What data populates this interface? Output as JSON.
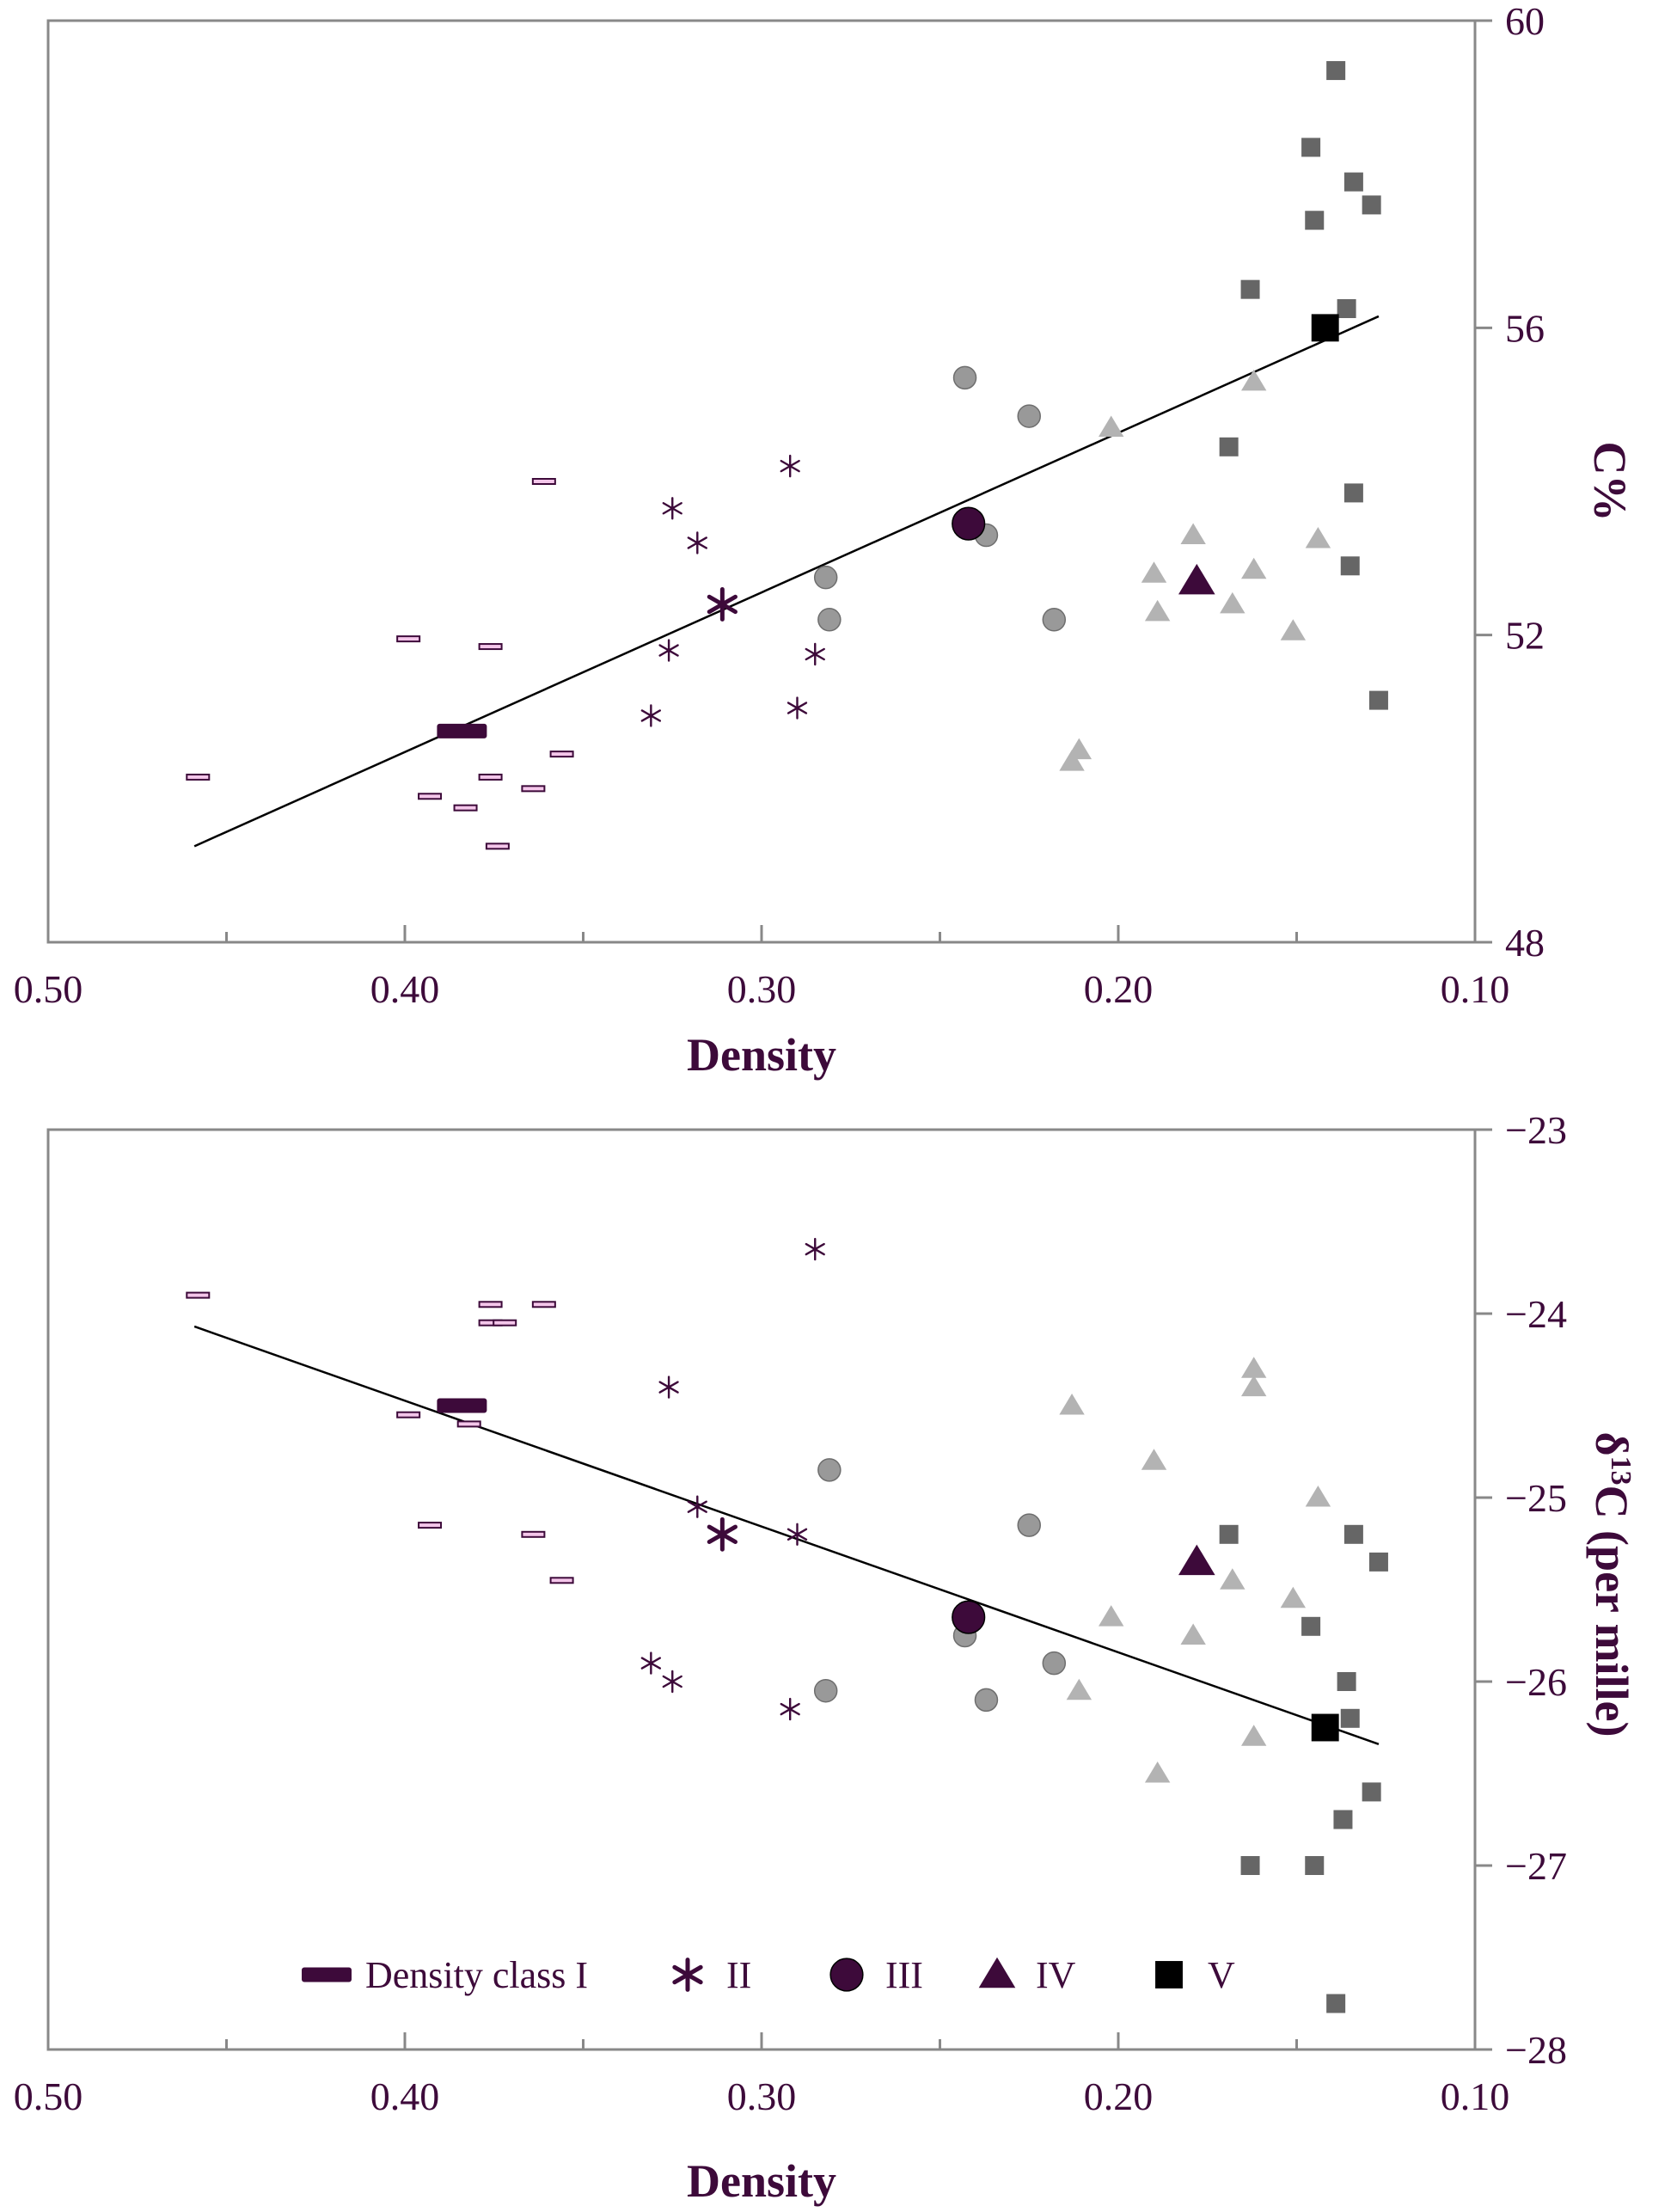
{
  "colors": {
    "class_I": "#3d0a3a",
    "class_II": "#3d0a3a",
    "class_III": "#999999",
    "class_IV": "#b3b3b3",
    "class_V": "#666666",
    "mean_I": "#3d0a3a",
    "mean_II": "#3d0a3a",
    "mean_III": "#3d0a3a",
    "mean_IV": "#3d0a3a",
    "mean_V": "#000000",
    "class_I_fill": "#f4c6ea",
    "axis": "#888888",
    "text": "#3d0a3a"
  },
  "legend": {
    "items": [
      {
        "label": "Density class I",
        "marker": "dash"
      },
      {
        "label": "II",
        "marker": "asterisk"
      },
      {
        "label": "III",
        "marker": "circle"
      },
      {
        "label": "IV",
        "marker": "triangle"
      },
      {
        "label": "V",
        "marker": "square"
      }
    ]
  },
  "chart_data": [
    {
      "type": "scatter",
      "xlabel": "Density",
      "ylabel": "C%",
      "xlim": [
        0.5,
        0.1
      ],
      "ylim": [
        48,
        60
      ],
      "x_ticks": [
        "0.50",
        "0.40",
        "0.30",
        "0.20",
        "0.10"
      ],
      "y_ticks": [
        "48",
        "52",
        "56",
        "60"
      ],
      "x_reversed": true,
      "y_axis_side": "right",
      "grid": false,
      "trendline": {
        "x": [
          0.459,
          0.127
        ],
        "y": [
          49.25,
          56.15
        ]
      },
      "series": [
        {
          "name": "Density class I",
          "marker": "dash",
          "points": [
            {
              "x": 0.361,
              "y": 54.0
            },
            {
              "x": 0.399,
              "y": 51.95
            },
            {
              "x": 0.376,
              "y": 51.85
            },
            {
              "x": 0.458,
              "y": 50.15
            },
            {
              "x": 0.393,
              "y": 49.9
            },
            {
              "x": 0.383,
              "y": 49.75
            },
            {
              "x": 0.376,
              "y": 50.15
            },
            {
              "x": 0.364,
              "y": 50.0
            },
            {
              "x": 0.356,
              "y": 50.45
            },
            {
              "x": 0.374,
              "y": 49.25
            }
          ]
        },
        {
          "name": "II",
          "marker": "asterisk",
          "points": [
            {
              "x": 0.292,
              "y": 54.2
            },
            {
              "x": 0.325,
              "y": 53.65
            },
            {
              "x": 0.318,
              "y": 53.2
            },
            {
              "x": 0.326,
              "y": 51.8
            },
            {
              "x": 0.285,
              "y": 51.75
            },
            {
              "x": 0.331,
              "y": 50.95
            },
            {
              "x": 0.29,
              "y": 51.05
            }
          ]
        },
        {
          "name": "III",
          "marker": "circle",
          "points": [
            {
              "x": 0.243,
              "y": 55.35
            },
            {
              "x": 0.225,
              "y": 54.85
            },
            {
              "x": 0.237,
              "y": 53.3
            },
            {
              "x": 0.282,
              "y": 52.75
            },
            {
              "x": 0.281,
              "y": 52.2
            },
            {
              "x": 0.218,
              "y": 52.2
            }
          ]
        },
        {
          "name": "IV",
          "marker": "triangle",
          "points": [
            {
              "x": 0.162,
              "y": 55.3
            },
            {
              "x": 0.202,
              "y": 54.7
            },
            {
              "x": 0.179,
              "y": 53.3
            },
            {
              "x": 0.144,
              "y": 53.25
            },
            {
              "x": 0.19,
              "y": 52.8
            },
            {
              "x": 0.162,
              "y": 52.85
            },
            {
              "x": 0.189,
              "y": 52.3
            },
            {
              "x": 0.168,
              "y": 52.4
            },
            {
              "x": 0.151,
              "y": 52.05
            },
            {
              "x": 0.211,
              "y": 50.5
            },
            {
              "x": 0.213,
              "y": 50.35
            }
          ]
        },
        {
          "name": "V",
          "marker": "square",
          "points": [
            {
              "x": 0.139,
              "y": 59.35
            },
            {
              "x": 0.146,
              "y": 58.35
            },
            {
              "x": 0.134,
              "y": 57.9
            },
            {
              "x": 0.145,
              "y": 57.4
            },
            {
              "x": 0.129,
              "y": 57.6
            },
            {
              "x": 0.163,
              "y": 56.5
            },
            {
              "x": 0.136,
              "y": 56.25
            },
            {
              "x": 0.169,
              "y": 54.45
            },
            {
              "x": 0.134,
              "y": 53.85
            },
            {
              "x": 0.135,
              "y": 52.9
            },
            {
              "x": 0.127,
              "y": 51.15
            }
          ]
        },
        {
          "name": "Density class I mean",
          "marker": "dash",
          "mean": true,
          "points": [
            {
              "x": 0.384,
              "y": 50.75
            }
          ]
        },
        {
          "name": "II mean",
          "marker": "asterisk",
          "mean": true,
          "points": [
            {
              "x": 0.311,
              "y": 52.4
            }
          ]
        },
        {
          "name": "III mean",
          "marker": "circle",
          "mean": true,
          "points": [
            {
              "x": 0.242,
              "y": 53.45
            }
          ]
        },
        {
          "name": "IV mean",
          "marker": "triangle",
          "mean": true,
          "points": [
            {
              "x": 0.178,
              "y": 52.7
            }
          ]
        },
        {
          "name": "V mean",
          "marker": "square",
          "mean": true,
          "points": [
            {
              "x": 0.142,
              "y": 56.0
            }
          ]
        }
      ]
    },
    {
      "type": "scatter",
      "xlabel": "Density",
      "ylabel": "δ13C (per mille)",
      "xlim": [
        0.5,
        0.1
      ],
      "ylim": [
        -28,
        -23
      ],
      "x_ticks": [
        "0.50",
        "0.40",
        "0.30",
        "0.20",
        "0.10"
      ],
      "y_ticks": [
        "−23",
        "−24",
        "−25",
        "−26",
        "−27",
        "−28"
      ],
      "x_reversed": true,
      "y_axis_side": "right",
      "grid": false,
      "trendline": {
        "x": [
          0.459,
          0.127
        ],
        "y": [
          -24.07,
          -26.34
        ]
      },
      "series": [
        {
          "name": "Density class I",
          "marker": "dash",
          "points": [
            {
              "x": 0.458,
              "y": -23.9
            },
            {
              "x": 0.376,
              "y": -23.95
            },
            {
              "x": 0.361,
              "y": -23.95
            },
            {
              "x": 0.376,
              "y": -24.05
            },
            {
              "x": 0.372,
              "y": -24.05
            },
            {
              "x": 0.399,
              "y": -24.55
            },
            {
              "x": 0.382,
              "y": -24.6
            },
            {
              "x": 0.393,
              "y": -25.15
            },
            {
              "x": 0.364,
              "y": -25.2
            },
            {
              "x": 0.356,
              "y": -25.45
            }
          ]
        },
        {
          "name": "II",
          "marker": "asterisk",
          "points": [
            {
              "x": 0.285,
              "y": -23.65
            },
            {
              "x": 0.326,
              "y": -24.4
            },
            {
              "x": 0.318,
              "y": -25.05
            },
            {
              "x": 0.29,
              "y": -25.2
            },
            {
              "x": 0.331,
              "y": -25.9
            },
            {
              "x": 0.325,
              "y": -26.0
            },
            {
              "x": 0.292,
              "y": -26.15
            }
          ]
        },
        {
          "name": "III",
          "marker": "circle",
          "points": [
            {
              "x": 0.281,
              "y": -24.85
            },
            {
              "x": 0.225,
              "y": -25.15
            },
            {
              "x": 0.243,
              "y": -25.75
            },
            {
              "x": 0.218,
              "y": -25.9
            },
            {
              "x": 0.282,
              "y": -26.05
            },
            {
              "x": 0.237,
              "y": -26.1
            }
          ]
        },
        {
          "name": "IV",
          "marker": "triangle",
          "points": [
            {
              "x": 0.162,
              "y": -24.3
            },
            {
              "x": 0.162,
              "y": -24.4
            },
            {
              "x": 0.213,
              "y": -24.5
            },
            {
              "x": 0.19,
              "y": -24.8
            },
            {
              "x": 0.144,
              "y": -25.0
            },
            {
              "x": 0.168,
              "y": -25.45
            },
            {
              "x": 0.151,
              "y": -25.55
            },
            {
              "x": 0.202,
              "y": -25.65
            },
            {
              "x": 0.179,
              "y": -25.75
            },
            {
              "x": 0.211,
              "y": -26.05
            },
            {
              "x": 0.162,
              "y": -26.3
            },
            {
              "x": 0.189,
              "y": -26.5
            }
          ]
        },
        {
          "name": "V",
          "marker": "square",
          "points": [
            {
              "x": 0.169,
              "y": -25.2
            },
            {
              "x": 0.134,
              "y": -25.2
            },
            {
              "x": 0.127,
              "y": -25.35
            },
            {
              "x": 0.146,
              "y": -25.7
            },
            {
              "x": 0.136,
              "y": -26.0
            },
            {
              "x": 0.135,
              "y": -26.2
            },
            {
              "x": 0.129,
              "y": -26.6
            },
            {
              "x": 0.137,
              "y": -26.75
            },
            {
              "x": 0.163,
              "y": -27.0
            },
            {
              "x": 0.145,
              "y": -27.0
            },
            {
              "x": 0.139,
              "y": -27.75
            }
          ]
        },
        {
          "name": "Density class I mean",
          "marker": "dash",
          "mean": true,
          "points": [
            {
              "x": 0.384,
              "y": -24.5
            }
          ]
        },
        {
          "name": "II mean",
          "marker": "asterisk",
          "mean": true,
          "points": [
            {
              "x": 0.311,
              "y": -25.2
            }
          ]
        },
        {
          "name": "III mean",
          "marker": "circle",
          "mean": true,
          "points": [
            {
              "x": 0.242,
              "y": -25.65
            }
          ]
        },
        {
          "name": "IV mean",
          "marker": "triangle",
          "mean": true,
          "points": [
            {
              "x": 0.178,
              "y": -25.35
            }
          ]
        },
        {
          "name": "V mean",
          "marker": "square",
          "mean": true,
          "points": [
            {
              "x": 0.142,
              "y": -26.25
            }
          ]
        }
      ]
    }
  ]
}
